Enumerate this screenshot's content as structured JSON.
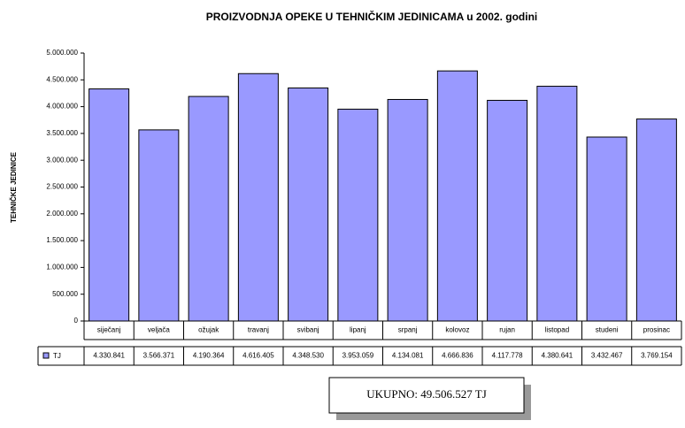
{
  "chart_data": {
    "type": "bar",
    "title": "PROIZVODNJA OPEKE U TEHNIČKIM JEDINICAMA  u  2002. godini",
    "y_label": "TEHNIČKE JEDINICE",
    "categories": [
      "siječanj",
      "veljača",
      "ožujak",
      "travanj",
      "svibanj",
      "lipanj",
      "srpanj",
      "kolovoz",
      "rujan",
      "listopad",
      "studeni",
      "prosinac"
    ],
    "series": [
      {
        "name": "TJ",
        "color": "#9999ff",
        "values": [
          4330841,
          3566371,
          4190364,
          4616405,
          4348530,
          3953059,
          4134081,
          4666836,
          4117778,
          4380641,
          3432467,
          3769154
        ],
        "value_labels": [
          "4.330.841",
          "3.566.371",
          "4.190.364",
          "4.616.405",
          "4.348.530",
          "3.953.059",
          "4.134.081",
          "4.666.836",
          "4.117.778",
          "4.380.641",
          "3.432.467",
          "3.769.154"
        ]
      }
    ],
    "ylim": [
      0,
      5000000
    ],
    "yticks": [
      0,
      {
        "value": 500000,
        "label": "500.000"
      },
      {
        "value": 1000000,
        "label": "1.000.000"
      },
      {
        "value": 1500000,
        "label": "1.500.000"
      },
      {
        "value": 2000000,
        "label": "2.000.000"
      },
      {
        "value": 2500000,
        "label": "2.500.000"
      },
      {
        "value": 3000000,
        "label": "3.000.000"
      },
      {
        "value": 3500000,
        "label": "3.500.000"
      },
      {
        "value": 4000000,
        "label": "4.000.000"
      },
      {
        "value": 4500000,
        "label": "4.500.000"
      },
      {
        "value": 5000000,
        "label": "5.000.000"
      }
    ],
    "annotation": "UKUPNO:  49.506.527 TJ"
  }
}
